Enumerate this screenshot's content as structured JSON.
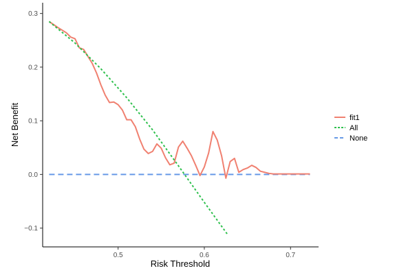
{
  "chart_data": {
    "type": "line",
    "xlabel": "Risk Threshold",
    "ylabel": "Net Benefit",
    "xlim": [
      0.4125,
      0.7325
    ],
    "ylim": [
      -0.135,
      0.32
    ],
    "x_ticks": [
      0.5,
      0.6,
      0.7
    ],
    "x_tick_labels": [
      "0.5",
      "0.6",
      "0.7"
    ],
    "y_ticks": [
      -0.1,
      0.0,
      0.1,
      0.2,
      0.3
    ],
    "y_tick_labels": [
      "−0.1",
      "0.0",
      "0.1",
      "0.2",
      "0.3"
    ],
    "grid": false,
    "legend_position": "right",
    "series": [
      {
        "name": "fit1",
        "style": "solid",
        "color": "#f08070",
        "x": [
          0.42,
          0.43,
          0.44,
          0.445,
          0.45,
          0.455,
          0.46,
          0.465,
          0.47,
          0.475,
          0.48,
          0.485,
          0.49,
          0.495,
          0.5,
          0.505,
          0.51,
          0.515,
          0.52,
          0.525,
          0.53,
          0.535,
          0.54,
          0.545,
          0.55,
          0.555,
          0.56,
          0.565,
          0.57,
          0.575,
          0.58,
          0.585,
          0.59,
          0.595,
          0.6,
          0.605,
          0.61,
          0.615,
          0.62,
          0.625,
          0.63,
          0.635,
          0.64,
          0.645,
          0.65,
          0.655,
          0.66,
          0.665,
          0.67,
          0.675,
          0.68,
          0.685,
          0.69,
          0.695,
          0.7,
          0.705,
          0.71,
          0.715,
          0.72,
          0.7225
        ],
        "y": [
          0.285,
          0.274,
          0.264,
          0.256,
          0.253,
          0.236,
          0.233,
          0.22,
          0.207,
          0.189,
          0.167,
          0.148,
          0.134,
          0.135,
          0.13,
          0.12,
          0.102,
          0.102,
          0.089,
          0.066,
          0.047,
          0.039,
          0.043,
          0.057,
          0.049,
          0.031,
          0.018,
          0.021,
          0.051,
          0.062,
          0.049,
          0.035,
          0.017,
          -0.002,
          0.014,
          0.04,
          0.08,
          0.064,
          0.035,
          -0.007,
          0.024,
          0.03,
          0.004,
          0.009,
          0.012,
          0.017,
          0.013,
          0.006,
          0.004,
          0.002,
          0.001,
          0.001,
          0.001,
          0.001,
          0.001,
          0.001,
          0.001,
          0.001,
          0.001,
          0.001
        ]
      },
      {
        "name": "All",
        "style": "dotted",
        "color": "#2ec04d",
        "x": [
          0.42,
          0.45,
          0.48,
          0.51,
          0.54,
          0.57,
          0.6,
          0.627
        ],
        "y": [
          0.285,
          0.245,
          0.197,
          0.143,
          0.083,
          0.016,
          -0.052,
          -0.112
        ]
      },
      {
        "name": "None",
        "style": "dashed",
        "color": "#6699e6",
        "x": [
          0.42,
          0.7225
        ],
        "y": [
          0.0,
          0.0
        ]
      }
    ]
  }
}
